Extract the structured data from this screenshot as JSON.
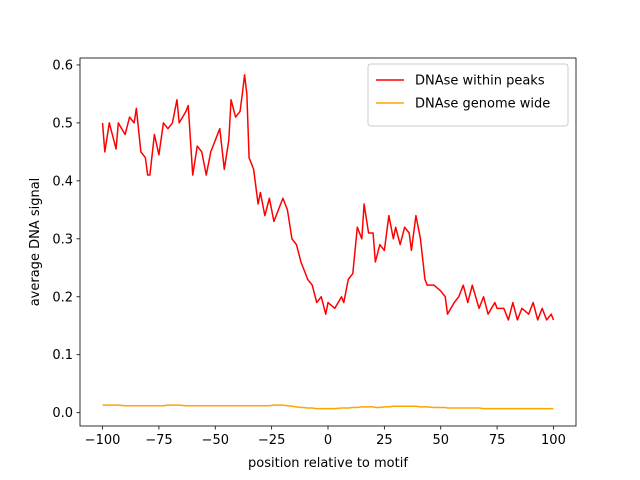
{
  "chart_data": {
    "type": "line",
    "xlabel": "position relative to motif",
    "ylabel": "average DNA signal",
    "x": [
      -100,
      -99,
      -97,
      -94,
      -93,
      -90,
      -88,
      -86,
      -85,
      -83,
      -81,
      -80,
      -79,
      -77,
      -75,
      -73,
      -71,
      -69,
      -67,
      -66,
      -63,
      -62,
      -60,
      -58,
      -56,
      -54,
      -52,
      -48,
      -46,
      -44,
      -43,
      -41,
      -39,
      -38,
      -37,
      -36,
      -35,
      -33,
      -31,
      -30,
      -28,
      -26,
      -24,
      -22,
      -20,
      -18,
      -16,
      -14,
      -12,
      -11,
      -9,
      -7,
      -5,
      -3,
      -1,
      0,
      3,
      6,
      7,
      9,
      11,
      13,
      15,
      16,
      18,
      20,
      21,
      23,
      25,
      27,
      29,
      30,
      32,
      34,
      36,
      37,
      39,
      41,
      43,
      44,
      47,
      50,
      52,
      53,
      56,
      58,
      60,
      62,
      64,
      67,
      69,
      71,
      74,
      75,
      78,
      80,
      82,
      84,
      86,
      89,
      91,
      93,
      95,
      97,
      99,
      100
    ],
    "series": [
      {
        "name": "DNAse within peaks",
        "color": "#ff0000",
        "values": [
          0.5,
          0.45,
          0.5,
          0.455,
          0.5,
          0.48,
          0.51,
          0.5,
          0.525,
          0.45,
          0.44,
          0.41,
          0.41,
          0.48,
          0.445,
          0.5,
          0.49,
          0.5,
          0.54,
          0.5,
          0.52,
          0.53,
          0.41,
          0.46,
          0.45,
          0.41,
          0.45,
          0.49,
          0.42,
          0.47,
          0.54,
          0.51,
          0.52,
          0.55,
          0.583,
          0.55,
          0.44,
          0.42,
          0.36,
          0.38,
          0.34,
          0.37,
          0.33,
          0.35,
          0.37,
          0.35,
          0.3,
          0.29,
          0.26,
          0.25,
          0.23,
          0.22,
          0.19,
          0.2,
          0.17,
          0.19,
          0.18,
          0.2,
          0.19,
          0.23,
          0.24,
          0.32,
          0.3,
          0.36,
          0.31,
          0.31,
          0.26,
          0.29,
          0.28,
          0.34,
          0.3,
          0.32,
          0.29,
          0.32,
          0.31,
          0.28,
          0.34,
          0.3,
          0.23,
          0.22,
          0.22,
          0.21,
          0.2,
          0.17,
          0.19,
          0.2,
          0.22,
          0.19,
          0.22,
          0.18,
          0.2,
          0.17,
          0.19,
          0.18,
          0.18,
          0.16,
          0.19,
          0.16,
          0.18,
          0.17,
          0.19,
          0.16,
          0.18,
          0.16,
          0.17,
          0.16
        ]
      },
      {
        "name": "DNAse genome wide",
        "color": "#ffa500",
        "values": [
          0.013,
          0.013,
          0.013,
          0.013,
          0.013,
          0.012,
          0.012,
          0.012,
          0.012,
          0.012,
          0.012,
          0.012,
          0.012,
          0.012,
          0.012,
          0.012,
          0.013,
          0.013,
          0.013,
          0.013,
          0.012,
          0.012,
          0.012,
          0.012,
          0.012,
          0.012,
          0.012,
          0.012,
          0.012,
          0.012,
          0.012,
          0.012,
          0.012,
          0.012,
          0.012,
          0.012,
          0.012,
          0.012,
          0.012,
          0.012,
          0.012,
          0.012,
          0.013,
          0.013,
          0.013,
          0.012,
          0.011,
          0.01,
          0.009,
          0.009,
          0.008,
          0.008,
          0.007,
          0.007,
          0.007,
          0.007,
          0.007,
          0.008,
          0.008,
          0.008,
          0.009,
          0.009,
          0.01,
          0.01,
          0.01,
          0.01,
          0.009,
          0.009,
          0.01,
          0.01,
          0.011,
          0.011,
          0.011,
          0.011,
          0.011,
          0.011,
          0.011,
          0.01,
          0.01,
          0.01,
          0.009,
          0.009,
          0.009,
          0.008,
          0.008,
          0.008,
          0.008,
          0.008,
          0.008,
          0.008,
          0.007,
          0.007,
          0.007,
          0.007,
          0.007,
          0.007,
          0.007,
          0.007,
          0.007,
          0.007,
          0.007,
          0.007,
          0.007,
          0.007,
          0.007,
          0.007
        ]
      }
    ],
    "xlim": [
      -110,
      110
    ],
    "xticks": [
      {
        "value": -100,
        "label": "−100"
      },
      {
        "value": -75,
        "label": "−75"
      },
      {
        "value": -50,
        "label": "−50"
      },
      {
        "value": -25,
        "label": "−25"
      },
      0,
      25,
      50,
      75,
      100
    ],
    "ylim": [
      -0.023,
      0.612
    ],
    "yticks": [
      {
        "value": 0,
        "label": "0.0"
      },
      0.1,
      0.2,
      0.3,
      0.4,
      0.5,
      0.6
    ],
    "legend": "upper right",
    "grid": false
  }
}
